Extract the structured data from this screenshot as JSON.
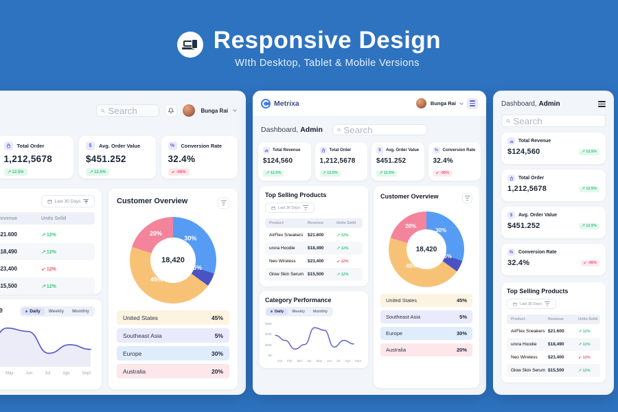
{
  "hero": {
    "title": "Responsive Design",
    "subtitle": "WIth Desktop, Tablet & Mobile Versions"
  },
  "brand": {
    "name": "Metrixa"
  },
  "user": {
    "name": "Bunga Rai"
  },
  "page_header": {
    "prefix": "Dashboard,",
    "role": "Admin"
  },
  "search_placeholder": "Search",
  "icons": {
    "dollar": "$",
    "percent": "%",
    "arrow_up": "↗",
    "arrow_down": "↙"
  },
  "colors": {
    "background": "#2E73C0",
    "accent": "#5D63C8",
    "green": "#34C77D",
    "red": "#F4516C",
    "panel": "#F2F5F9"
  },
  "stats": [
    {
      "label": "Total Revenue",
      "value": "$124,560",
      "delta": "12.5%",
      "direction": "up",
      "icon": "bar-chart-icon"
    },
    {
      "label": "Total Order",
      "value": "1,212,5678",
      "delta": "12.5%",
      "direction": "up",
      "icon": "bag-icon"
    },
    {
      "label": "Avg. Order Value",
      "value": "$451.252",
      "delta": "12.5%",
      "direction": "up",
      "icon": "dollar-icon"
    },
    {
      "label": "Conversion Rate",
      "value": "32.4%",
      "delta": "-06%",
      "direction": "down",
      "icon": "percent-icon"
    }
  ],
  "top_selling": {
    "title": "Top Selling Products",
    "filter_label": "Last 30 Days",
    "columns": [
      "Product",
      "Revenue",
      "Units Selld"
    ],
    "rows": [
      {
        "product": "AirFlex Sneakers",
        "revenue": "$21.600",
        "units": "12%",
        "direction": "up"
      },
      {
        "product": "urora Hoodie",
        "revenue": "$18,490",
        "units": "12%",
        "direction": "up"
      },
      {
        "product": "Neo Wireless",
        "revenue": "$23,400",
        "units": "12%",
        "direction": "down"
      },
      {
        "product": "Glow Skin Serum",
        "revenue": "$15,500",
        "units": "12%",
        "direction": "up"
      }
    ]
  },
  "category_performance": {
    "tabs": [
      "Daily",
      "Weekly",
      "Monthly"
    ],
    "active_tab": "Daily"
  },
  "chart_data": [
    {
      "id": "customer_overview_donut",
      "type": "pie",
      "title": "Customer Overview",
      "center_total": "18,420",
      "segments": [
        {
          "label": "United States",
          "value": 45,
          "pct_label": "45%",
          "color": "#F8C276",
          "legend_bg": "#FCF3E1"
        },
        {
          "label": "Southeast Asia",
          "value": 5,
          "pct_label": "5%",
          "color": "#4A52C4",
          "legend_bg": "#E9EAFC"
        },
        {
          "label": "Europe",
          "value": 30,
          "pct_label": "30%",
          "color": "#569CF4",
          "legend_bg": "#DFECFB"
        },
        {
          "label": "Australia",
          "value": 20,
          "pct_label": "20%",
          "color": "#F4849B",
          "legend_bg": "#FDE7EB"
        }
      ],
      "draw_order": [
        "Europe",
        "Southeast Asia",
        "United States",
        "Australia"
      ],
      "legend_position": "bottom"
    },
    {
      "id": "category_performance_line",
      "type": "line",
      "title": "Category Performance",
      "x": [
        "Jan",
        "Feb",
        "Mar",
        "Apr",
        "May",
        "Jun",
        "Jul",
        "Ags",
        "Sept"
      ],
      "series": [
        {
          "name": "Revenue",
          "values": [
            40,
            30,
            13,
            22,
            55,
            50,
            17,
            30,
            23
          ]
        }
      ],
      "y_ticks": [
        "$50k",
        "$30k",
        "$20k",
        "$0"
      ],
      "ylim": [
        0,
        62
      ],
      "grid": false,
      "line_color": "#5D63C8",
      "area_fill": "rgba(93,99,200,0.12)"
    }
  ]
}
